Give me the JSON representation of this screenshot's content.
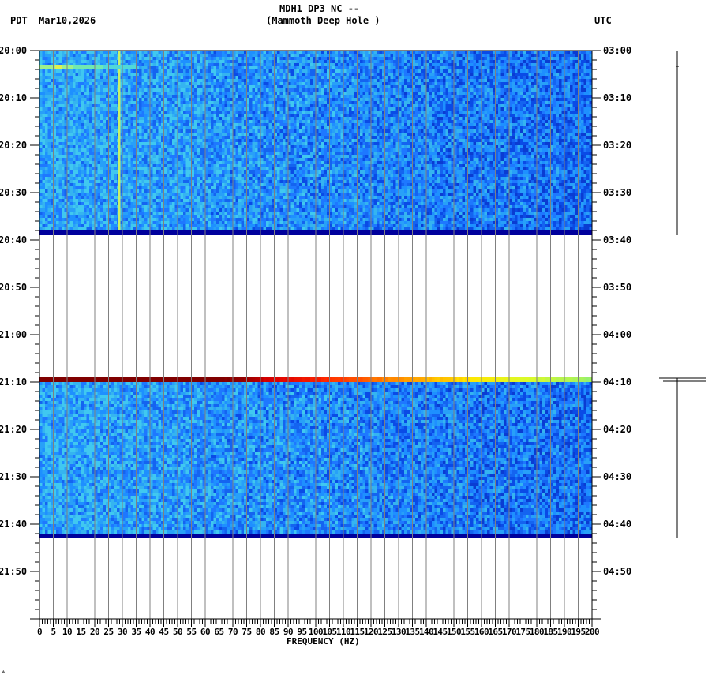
{
  "header": {
    "station_line": "MDH1 DP3 NC --",
    "station_name": "(Mammoth Deep Hole )",
    "left_timezone": "PDT",
    "date": "Mar10,2026",
    "right_timezone": "UTC"
  },
  "footer": {
    "mark": "ᴬ"
  },
  "colors": {
    "background_noise_low": "#0a4be6",
    "background_noise_mid": "#1e90ff",
    "background_noise_high": "#35c8f0",
    "data_gap_band": "#00009c",
    "gridline": "#808080",
    "spectral_line": "#c8f068",
    "saturation_start": "#800000",
    "saturation_end": "#90f070"
  },
  "chart_data": {
    "type": "heatmap",
    "title": "MDH1 DP3 NC -- (Mammoth Deep Hole )",
    "xlabel": "FREQUENCY (HZ)",
    "ylabel_left": "PDT",
    "ylabel_right": "UTC",
    "date": "Mar10,2026",
    "xlim": [
      0,
      200
    ],
    "x_ticks": [
      0,
      5,
      10,
      15,
      20,
      25,
      30,
      35,
      40,
      45,
      50,
      55,
      60,
      65,
      70,
      75,
      80,
      85,
      90,
      95,
      100,
      105,
      110,
      115,
      120,
      125,
      130,
      135,
      140,
      145,
      150,
      155,
      160,
      165,
      170,
      175,
      180,
      185,
      190,
      195,
      200
    ],
    "y_ticks_left": [
      "20:00",
      "20:10",
      "20:20",
      "20:30",
      "20:40",
      "20:50",
      "21:00",
      "21:10",
      "21:20",
      "21:30",
      "21:40",
      "21:50"
    ],
    "y_ticks_right": [
      "03:00",
      "03:10",
      "03:20",
      "03:30",
      "03:40",
      "03:50",
      "04:00",
      "04:10",
      "04:20",
      "04:30",
      "04:40",
      "04:50"
    ],
    "ylim_minutes": [
      0,
      120
    ],
    "grid": "vertical every 5 Hz",
    "segments": [
      {
        "start_pdt": "20:00",
        "end_pdt": "20:38",
        "description": "low-level blue broadband noise",
        "gap_marker_pdt": "20:38"
      },
      {
        "start_pdt": "21:10",
        "end_pdt": "21:42",
        "description": "low-level blue broadband noise",
        "gap_marker_pdt": "21:42"
      }
    ],
    "features": [
      {
        "type": "persistent spectral line",
        "frequency_hz": 29,
        "color": "yellow-green"
      },
      {
        "type": "short broadband burst",
        "time_pdt": "20:03",
        "frequency_range_hz": [
          0,
          35
        ],
        "color": "yellow-green"
      },
      {
        "type": "saturated onset row",
        "time_pdt": "21:09",
        "frequency_range_hz": [
          0,
          200
        ],
        "color_gradient": "dark red (low Hz) -> red -> orange -> yellow -> light green (high Hz)"
      },
      {
        "type": "no data",
        "time_range_pdt": [
          "20:39",
          "21:09"
        ]
      },
      {
        "type": "no data",
        "time_range_pdt": [
          "21:43",
          "22:00"
        ]
      }
    ],
    "trace_panel": {
      "description": "helicorder-style trace lines to the right of the UTC axis",
      "segments": [
        {
          "start_utc": "03:00",
          "end_utc": "03:39"
        },
        {
          "start_utc": "04:10",
          "end_utc": "04:43",
          "has_offset_marker": true
        }
      ]
    }
  }
}
